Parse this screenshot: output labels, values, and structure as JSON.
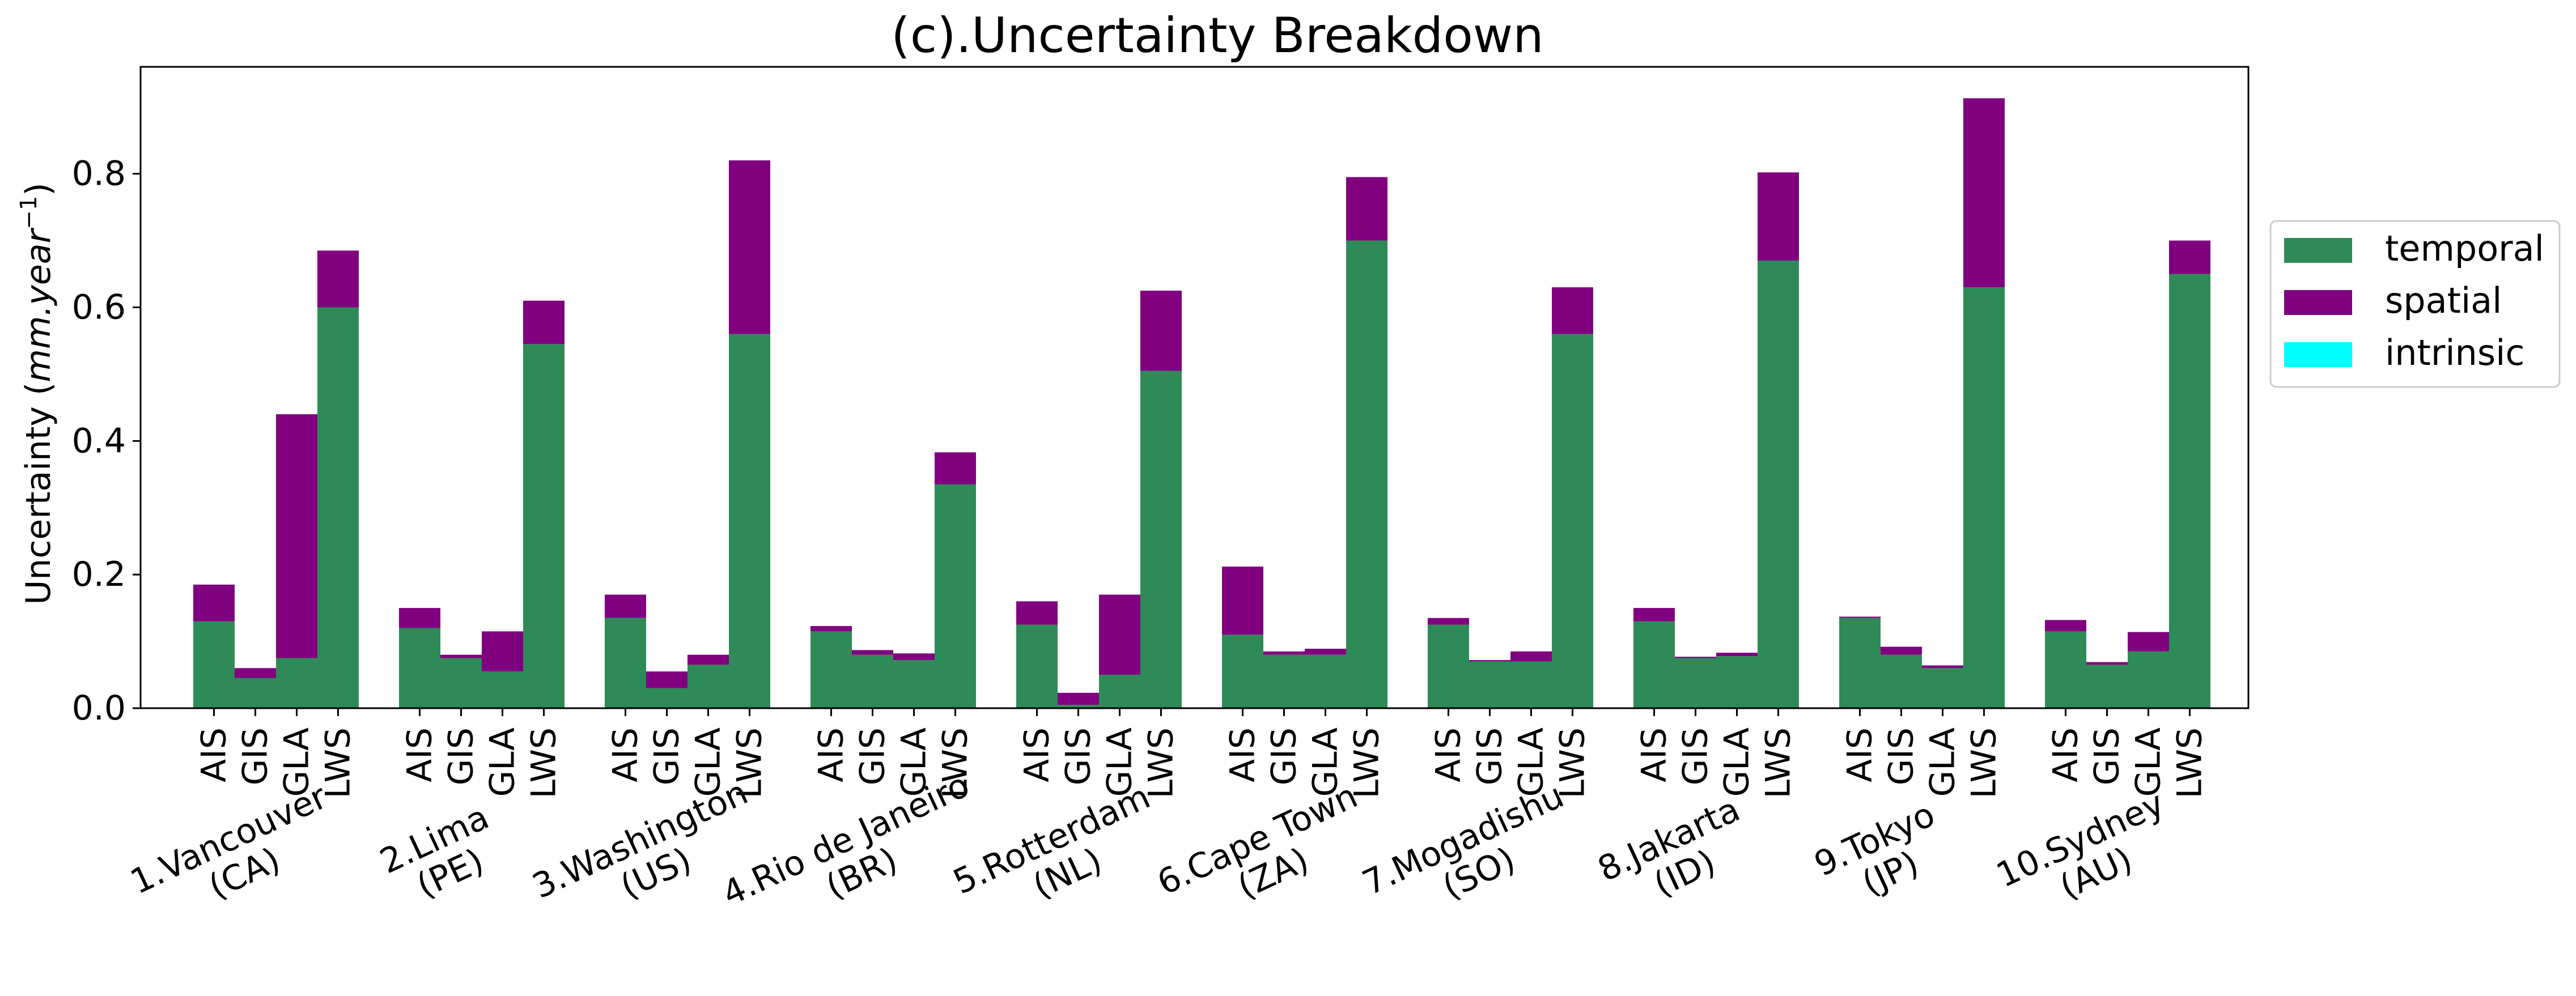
{
  "chart_data": {
    "type": "bar",
    "title": "(c).Uncertainty Breakdown",
    "ylabel_main": "Uncertainty (",
    "ylabel_unit": "mm.year",
    "ylabel_exp": "−1",
    "ylabel_close": ")",
    "ylim": [
      0,
      0.96
    ],
    "yticks": [
      "0.0",
      "0.2",
      "0.4",
      "0.6",
      "0.8"
    ],
    "ytick_values": [
      0,
      0.2,
      0.4,
      0.6,
      0.8
    ],
    "grid": false,
    "legend_position": "right-outside-top",
    "legend": [
      "temporal",
      "spatial",
      "intrinsic"
    ],
    "sub_categories": [
      "AIS",
      "GIS",
      "GLA",
      "LWS"
    ],
    "groups": [
      {
        "line1": "1.Vancouver",
        "line2": "(CA)"
      },
      {
        "line1": "2.Lima",
        "line2": "(PE)"
      },
      {
        "line1": "3.Washington",
        "line2": "(US)"
      },
      {
        "line1": "4.Rio de Janeiro",
        "line2": "(BR)"
      },
      {
        "line1": "5.Rotterdam",
        "line2": "(NL)"
      },
      {
        "line1": "6.Cape Town",
        "line2": "(ZA)"
      },
      {
        "line1": "7.Mogadishu",
        "line2": "(SO)"
      },
      {
        "line1": "8.Jakarta",
        "line2": "(ID)"
      },
      {
        "line1": "9.Tokyo",
        "line2": "(JP)"
      },
      {
        "line1": "10.Sydney",
        "line2": "(AU)"
      }
    ],
    "series": [
      {
        "name": "temporal",
        "color": "#2e8b57",
        "values": [
          [
            0.13,
            0.045,
            0.075,
            0.6
          ],
          [
            0.12,
            0.075,
            0.055,
            0.545
          ],
          [
            0.135,
            0.03,
            0.065,
            0.56
          ],
          [
            0.115,
            0.08,
            0.072,
            0.335
          ],
          [
            0.125,
            0.005,
            0.05,
            0.505
          ],
          [
            0.11,
            0.08,
            0.08,
            0.7
          ],
          [
            0.125,
            0.07,
            0.07,
            0.56
          ],
          [
            0.13,
            0.075,
            0.078,
            0.67
          ],
          [
            0.135,
            0.08,
            0.06,
            0.63
          ],
          [
            0.115,
            0.065,
            0.085,
            0.65
          ]
        ]
      },
      {
        "name": "spatial",
        "color": "#800080",
        "values": [
          [
            0.055,
            0.015,
            0.365,
            0.085
          ],
          [
            0.03,
            0.005,
            0.06,
            0.065
          ],
          [
            0.035,
            0.025,
            0.015,
            0.26
          ],
          [
            0.008,
            0.007,
            0.01,
            0.048
          ],
          [
            0.035,
            0.018,
            0.12,
            0.12
          ],
          [
            0.102,
            0.005,
            0.009,
            0.095
          ],
          [
            0.01,
            0.002,
            0.015,
            0.07
          ],
          [
            0.02,
            0.002,
            0.005,
            0.132
          ],
          [
            0.002,
            0.012,
            0.004,
            0.283
          ],
          [
            0.017,
            0.004,
            0.029,
            0.05
          ]
        ]
      },
      {
        "name": "intrinsic",
        "color": "#00ffff",
        "values": [
          [
            0,
            0,
            0,
            0
          ],
          [
            0,
            0,
            0,
            0
          ],
          [
            0,
            0,
            0,
            0
          ],
          [
            0,
            0,
            0,
            0
          ],
          [
            0,
            0,
            0,
            0
          ],
          [
            0,
            0,
            0,
            0
          ],
          [
            0,
            0,
            0,
            0
          ],
          [
            0,
            0,
            0,
            0
          ],
          [
            0,
            0,
            0,
            0
          ],
          [
            0,
            0,
            0,
            0
          ]
        ]
      }
    ]
  }
}
